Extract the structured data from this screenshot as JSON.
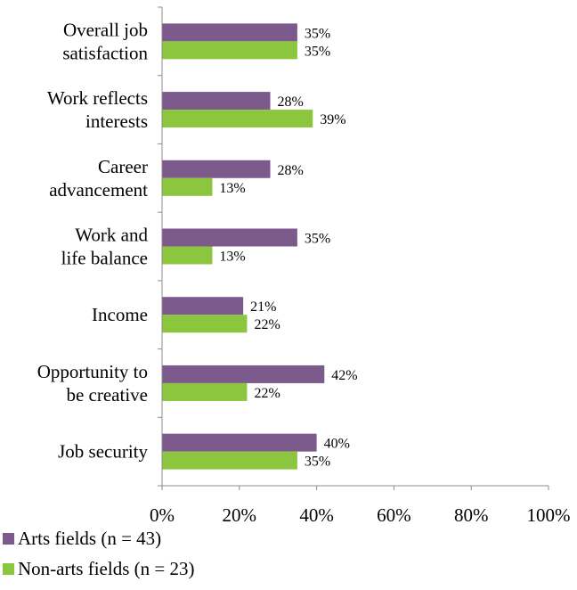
{
  "chart_data": {
    "type": "bar",
    "orientation": "horizontal",
    "categories": [
      [
        "Overall job",
        "satisfaction"
      ],
      [
        "Work reflects",
        "interests"
      ],
      [
        "Career",
        "advancement"
      ],
      [
        "Work and",
        "life balance"
      ],
      [
        "Income"
      ],
      [
        "Opportunity to",
        "be creative"
      ],
      [
        "Job security"
      ]
    ],
    "series": [
      {
        "name": "Arts fields (n = 43)",
        "color": "#7d5a8c",
        "values": [
          35,
          28,
          28,
          35,
          21,
          42,
          40
        ],
        "labels": [
          "35%",
          "28%",
          "28%",
          "35%",
          "21%",
          "42%",
          "40%"
        ]
      },
      {
        "name": "Non-arts fields (n = 23)",
        "color": "#8cc63f",
        "values": [
          35,
          39,
          13,
          13,
          22,
          22,
          35
        ],
        "labels": [
          "35%",
          "39%",
          "13%",
          "13%",
          "22%",
          "22%",
          "35%"
        ]
      }
    ],
    "xlim": [
      0,
      100
    ],
    "xticks": [
      0,
      20,
      40,
      60,
      80,
      100
    ],
    "xtick_labels": [
      "0%",
      "20%",
      "40%",
      "60%",
      "80%",
      "100%"
    ],
    "grid": false,
    "legend": "bottom-left"
  }
}
